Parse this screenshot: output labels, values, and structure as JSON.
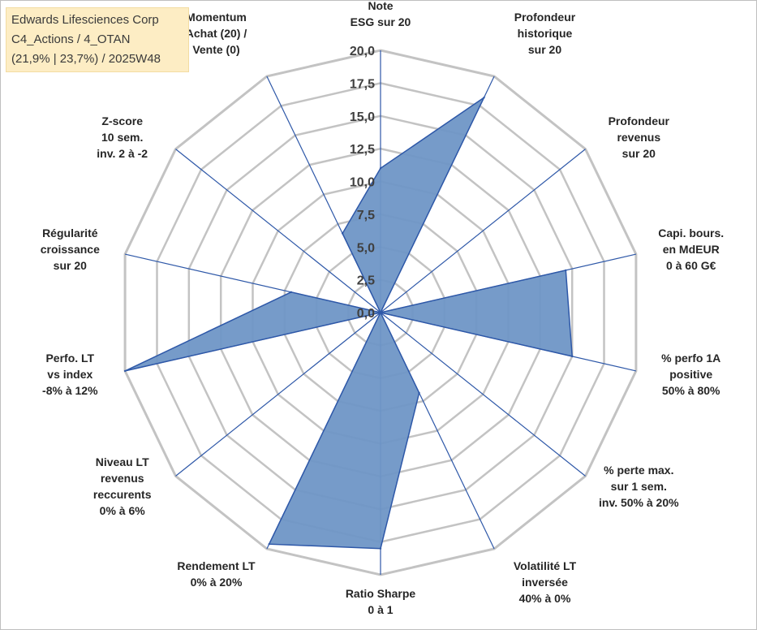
{
  "header": {
    "lines": [
      "Edwards Lifesciences Corp",
      "C4_Actions / 4_OTAN",
      "(21,9% | 23,7%) / 2025W48"
    ]
  },
  "colors": {
    "fill": "#6f96c6",
    "stroke": "#2e58a8",
    "grid": "#c3c3c3",
    "spoke": "#2e58a8"
  },
  "chart_data": {
    "type": "radar",
    "title": "",
    "rmin": 0,
    "rmax": 20,
    "ticks": [
      "0,0",
      "2,5",
      "5,0",
      "7,5",
      "10,0",
      "12,5",
      "15,0",
      "17,5",
      "20,0"
    ],
    "tick_values": [
      0,
      2.5,
      5,
      7.5,
      10,
      12.5,
      15,
      17.5,
      20
    ],
    "grid": true,
    "categories": [
      {
        "lines": [
          "Note",
          "ESG sur 20"
        ]
      },
      {
        "lines": [
          "Profondeur",
          "historique",
          "sur 20"
        ]
      },
      {
        "lines": [
          "Profondeur",
          "revenus",
          "sur 20"
        ]
      },
      {
        "lines": [
          "Capi. bours.",
          "en MdEUR",
          "0 à 60 G€"
        ]
      },
      {
        "lines": [
          "% perfo 1A",
          "positive",
          "50% à 80%"
        ]
      },
      {
        "lines": [
          "% perte max.",
          "sur 1 sem.",
          "inv. 50% à 20%"
        ]
      },
      {
        "lines": [
          "Volatilité LT",
          "inversée",
          "40% à 0%"
        ]
      },
      {
        "lines": [
          "Ratio Sharpe",
          "0 à 1"
        ]
      },
      {
        "lines": [
          "Rendement LT",
          "0% à 20%"
        ]
      },
      {
        "lines": [
          "Niveau LT",
          "revenus",
          "reccurents",
          "0% à 6%"
        ]
      },
      {
        "lines": [
          "Perfo. LT",
          "vs index",
          "-8% à 12%"
        ]
      },
      {
        "lines": [
          "Régularité",
          "croissance",
          "sur 20"
        ]
      },
      {
        "lines": [
          "Z-score",
          "10 sem.",
          "inv. 2 à -2"
        ]
      },
      {
        "lines": [
          "Momentum",
          "Achat (20) /",
          "Vente (0)"
        ]
      }
    ],
    "series": [
      {
        "values": [
          11.0,
          18.2,
          0.0,
          14.5,
          15.0,
          0.0,
          6.8,
          18.0,
          19.6,
          0.0,
          20.0,
          7.0,
          0.0,
          6.7
        ]
      }
    ]
  }
}
